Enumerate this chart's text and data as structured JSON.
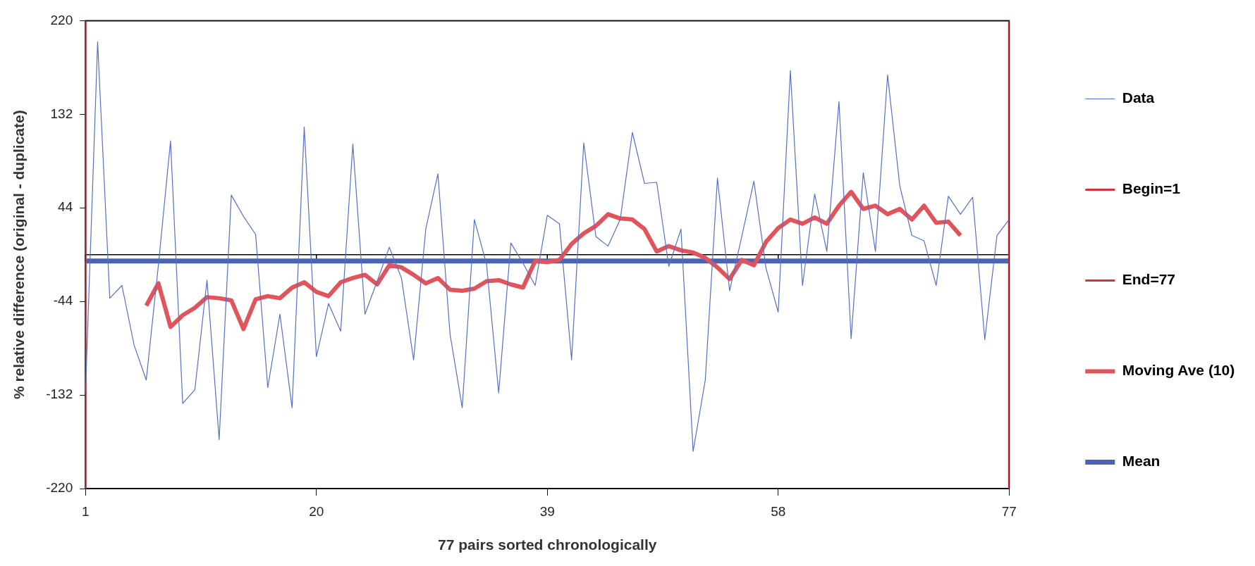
{
  "chart_data": {
    "type": "line",
    "xlabel": "77 pairs sorted chronologically",
    "ylabel": "% relative difference (original - duplicate)",
    "x": [
      1,
      2,
      3,
      4,
      5,
      6,
      7,
      8,
      9,
      10,
      11,
      12,
      13,
      14,
      15,
      16,
      17,
      18,
      19,
      20,
      21,
      22,
      23,
      24,
      25,
      26,
      27,
      28,
      29,
      30,
      31,
      32,
      33,
      34,
      35,
      36,
      37,
      38,
      39,
      40,
      41,
      42,
      43,
      44,
      45,
      46,
      47,
      48,
      49,
      50,
      51,
      52,
      53,
      54,
      55,
      56,
      57,
      58,
      59,
      60,
      61,
      62,
      63,
      64,
      65,
      66,
      67,
      68,
      69,
      70,
      71,
      72,
      73,
      74,
      75,
      76,
      77
    ],
    "series": [
      {
        "name": "Data",
        "color": "#5670c8",
        "values": [
          -130,
          200,
          -41,
          -29,
          -85,
          -118,
          -10,
          107,
          -140,
          -127,
          -24,
          -174,
          56,
          36,
          19,
          -125,
          -56,
          -144,
          120,
          -96,
          -46,
          -72,
          104,
          -56,
          -25,
          7,
          -22,
          -99,
          24,
          76,
          -75,
          -144,
          33,
          -9,
          -130,
          11,
          -8,
          -29,
          37,
          29,
          -99,
          105,
          17,
          8,
          33,
          115,
          67,
          68,
          -11,
          24,
          -185,
          -118,
          72,
          -34,
          17,
          69,
          -13,
          -54,
          173,
          -29,
          57,
          3,
          144,
          -79,
          77,
          3,
          169,
          65,
          18,
          13,
          -29,
          55,
          38,
          54,
          -80,
          18,
          33
        ]
      },
      {
        "name": "Begin=1",
        "color": "#d0353f",
        "x": [
          1,
          1
        ],
        "values": [
          -220,
          220
        ]
      },
      {
        "name": "End=77",
        "color": "#d0353f",
        "x": [
          77,
          77
        ],
        "values": [
          -220,
          220
        ]
      },
      {
        "name": "Moving Ave (10)",
        "color": "#e0545c",
        "x": [
          6,
          7,
          8,
          9,
          10,
          11,
          12,
          13,
          14,
          15,
          16,
          17,
          18,
          19,
          20,
          21,
          22,
          23,
          24,
          25,
          26,
          27,
          28,
          29,
          30,
          31,
          32,
          33,
          34,
          35,
          36,
          37,
          38,
          39,
          40,
          41,
          42,
          43,
          44,
          45,
          46,
          47,
          48,
          49,
          50,
          51,
          52,
          53,
          54,
          55,
          56,
          57,
          58,
          59,
          60,
          61,
          62,
          63,
          64,
          65,
          66,
          67,
          68,
          69,
          70,
          71,
          72,
          73
        ],
        "values": [
          -48,
          -27,
          -68,
          -57,
          -50,
          -40,
          -41,
          -43,
          -70,
          -42,
          -39,
          -41,
          -31,
          -26,
          -35,
          -39,
          -26,
          -22,
          -19,
          -28,
          -10,
          -12,
          -19,
          -27,
          -22,
          -33,
          -34,
          -32,
          -25,
          -24,
          -28,
          -31,
          -6,
          -7,
          -5,
          10,
          20,
          27,
          38,
          34,
          33,
          24,
          3,
          8,
          4,
          2,
          -3,
          -12,
          -23,
          -5,
          -10,
          12,
          25,
          33,
          29,
          35,
          29,
          46,
          59,
          43,
          46,
          38,
          43,
          33,
          46,
          30,
          31,
          18
        ]
      },
      {
        "name": "Mean",
        "color": "#4a62b8",
        "x": [
          1,
          77
        ],
        "values": [
          -6,
          -6
        ]
      }
    ],
    "ref_lines": [
      {
        "axis": "y",
        "value": 0,
        "color": "#000000"
      }
    ],
    "xlim": [
      1,
      77
    ],
    "xticks": [
      1,
      20,
      39,
      58,
      77
    ],
    "ylim": [
      -220,
      220
    ],
    "yticks": [
      -220,
      -132,
      -44,
      44,
      132,
      220
    ],
    "grid": false,
    "legend": "right",
    "marker": "none",
    "line_style": "solid"
  }
}
